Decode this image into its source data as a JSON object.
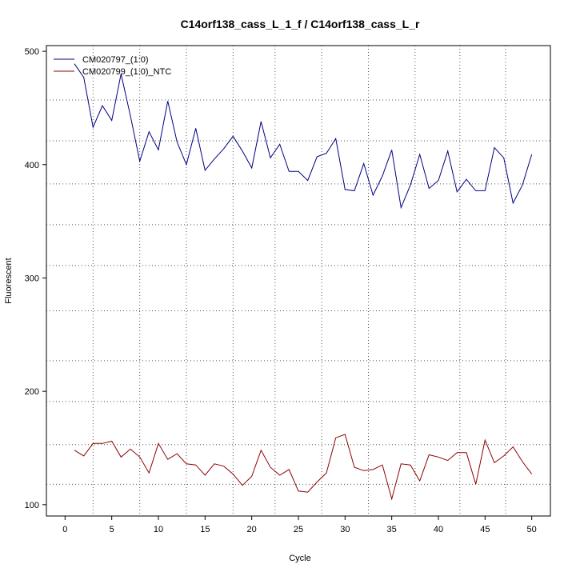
{
  "chart_data": {
    "type": "line",
    "title": "C14orf138_cass_L_1_f / C14orf138_cass_L_r",
    "xlabel": "Cycle",
    "ylabel": "Fluorescent",
    "xlim": [
      -2,
      52
    ],
    "ylim": [
      90,
      505
    ],
    "x_ticks": [
      0,
      5,
      10,
      15,
      20,
      25,
      30,
      35,
      40,
      45,
      50
    ],
    "y_ticks": [
      100,
      200,
      300,
      400,
      500
    ],
    "grid": "dotted",
    "v_grid": [
      3,
      8,
      13,
      18,
      22.5,
      27.5,
      32.5,
      37.5,
      42.3,
      47.2
    ],
    "h_grid": [
      118,
      153,
      191,
      227,
      271,
      311,
      347,
      383,
      421,
      457
    ],
    "legend_position": "top-left",
    "x": [
      1,
      2,
      3,
      4,
      5,
      6,
      7,
      8,
      9,
      10,
      11,
      12,
      13,
      14,
      15,
      16,
      17,
      18,
      19,
      20,
      21,
      22,
      23,
      24,
      25,
      26,
      27,
      28,
      29,
      30,
      31,
      32,
      33,
      34,
      35,
      36,
      37,
      38,
      39,
      40,
      41,
      42,
      43,
      44,
      45,
      46,
      47,
      48,
      49,
      50
    ],
    "series": [
      {
        "name": "CM020797_(1:0)",
        "color": "#000080",
        "values": [
          489,
          477,
          433,
          452,
          439,
          480,
          443,
          403,
          429,
          413,
          456,
          420,
          400,
          432,
          395,
          405,
          414,
          425,
          412,
          397,
          438,
          406,
          418,
          394,
          394,
          386,
          407,
          410,
          423,
          378,
          377,
          401,
          373,
          390,
          413,
          362,
          382,
          409,
          379,
          386,
          412,
          376,
          387,
          377,
          377,
          415,
          406,
          366,
          382,
          409
        ]
      },
      {
        "name": "CM020799_(1:0)_NTC",
        "color": "#8b0000",
        "values": [
          148,
          143,
          154,
          154,
          156,
          142,
          149,
          142,
          128,
          154,
          140,
          145,
          136,
          135,
          126,
          136,
          134,
          127,
          117,
          125,
          148,
          133,
          126,
          131,
          112,
          111,
          120,
          128,
          159,
          162,
          133,
          130,
          131,
          135,
          105,
          136,
          135,
          121,
          144,
          142,
          139,
          146,
          146,
          118,
          157,
          137,
          143,
          151,
          138,
          127
        ]
      }
    ]
  }
}
